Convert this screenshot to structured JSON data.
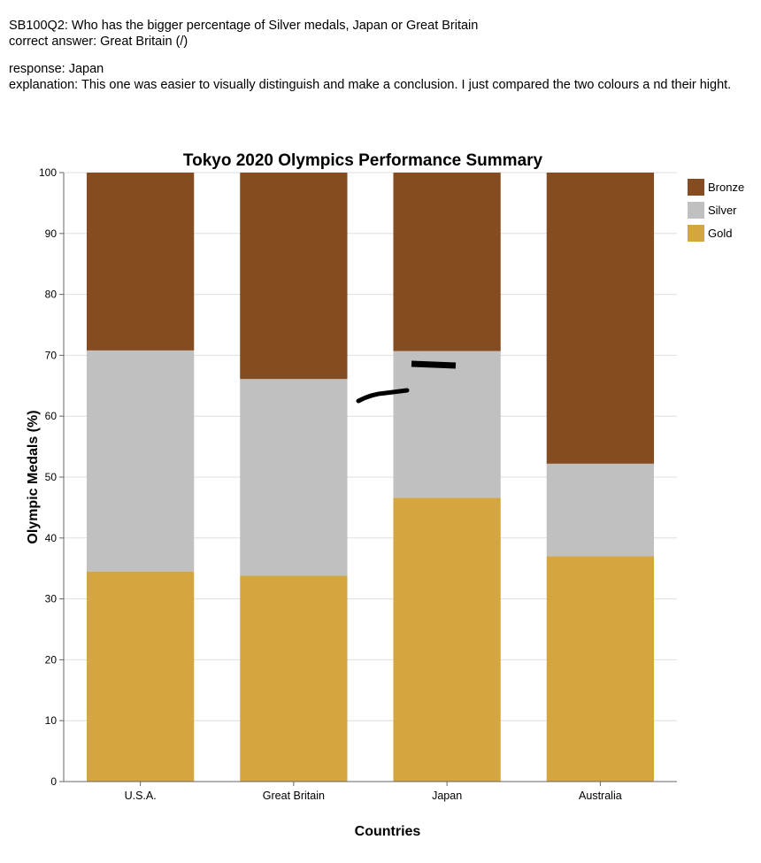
{
  "header": {
    "question": "SB100Q2: Who has the bigger percentage of Silver medals, Japan or Great Britain",
    "correct_answer": "correct answer: Great Britain (/)",
    "response": "response: Japan",
    "explanation": "explanation: This one was easier to visually distinguish and make a conclusion. I just compared the two colours a nd their hight."
  },
  "chart_data": {
    "type": "bar",
    "stacked": true,
    "title": "Tokyo 2020 Olympics Performance Summary",
    "xlabel": "Countries",
    "ylabel": "Olympic Medals (%)",
    "ylim": [
      0,
      100
    ],
    "yticks": [
      0,
      10,
      20,
      30,
      40,
      50,
      60,
      70,
      80,
      90,
      100
    ],
    "grid": true,
    "legend_position": "top-right",
    "categories": [
      "U.S.A.",
      "Great Britain",
      "Japan",
      "Australia"
    ],
    "series": [
      {
        "name": "Gold",
        "color": "#d4a640",
        "values": [
          34.5,
          33.8,
          46.6,
          37.0
        ]
      },
      {
        "name": "Silver",
        "color": "#c0c0c0",
        "values": [
          36.3,
          32.3,
          24.1,
          15.2
        ]
      },
      {
        "name": "Bronze",
        "color": "#854b21",
        "values": [
          29.2,
          33.9,
          29.3,
          47.8
        ]
      }
    ],
    "legend_order": [
      "Bronze",
      "Silver",
      "Gold"
    ]
  }
}
